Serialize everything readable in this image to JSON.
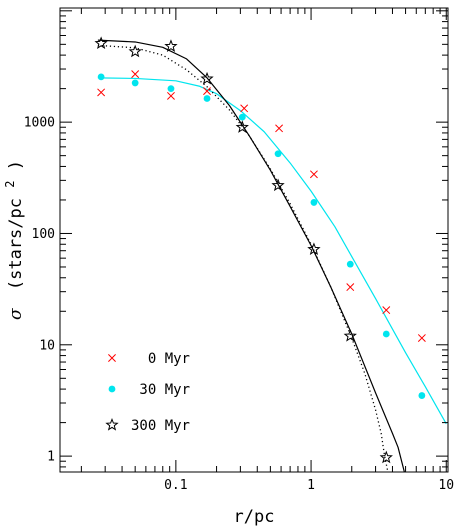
{
  "chart_data": {
    "type": "scatter",
    "xscale": "log",
    "yscale": "log",
    "xlim": [
      0.0139,
      10.3
    ],
    "ylim": [
      0.72,
      10600
    ],
    "xlabel": "r/pc",
    "ylabel_symbol": "σ",
    "ylabel_text": "(stars/pc",
    "ylabel_sup": "2",
    "ylabel_close": ")",
    "x_ticks": [
      {
        "value": 0.1,
        "label": "0.1"
      },
      {
        "value": 1,
        "label": "1"
      },
      {
        "value": 10,
        "label": "10"
      }
    ],
    "y_ticks": [
      {
        "value": 1,
        "label": "1"
      },
      {
        "value": 10,
        "label": "10"
      },
      {
        "value": 100,
        "label": "100"
      },
      {
        "value": 1000,
        "label": "1000"
      }
    ],
    "legend": {
      "placement": "bottom-left",
      "entries": [
        {
          "label": "0 Myr",
          "marker": "cross",
          "color": "#ff0000"
        },
        {
          "label": "30 Myr",
          "marker": "dot",
          "color": "#00e5ee"
        },
        {
          "label": "300 Myr",
          "marker": "star",
          "color": "#000000"
        }
      ]
    },
    "series": [
      {
        "name": "0 Myr",
        "marker": "cross",
        "color": "#ff0000",
        "points": [
          [
            0.028,
            1850
          ],
          [
            0.05,
            2700
          ],
          [
            0.092,
            1720
          ],
          [
            0.17,
            1900
          ],
          [
            0.32,
            1330
          ],
          [
            0.58,
            880
          ],
          [
            1.05,
            340
          ],
          [
            1.95,
            33
          ],
          [
            3.6,
            20.5
          ],
          [
            6.6,
            11.5
          ]
        ]
      },
      {
        "name": "30 Myr",
        "marker": "dot",
        "color": "#00e5ee",
        "points": [
          [
            0.028,
            2550
          ],
          [
            0.05,
            2250
          ],
          [
            0.092,
            2000
          ],
          [
            0.17,
            1630
          ],
          [
            0.31,
            1110
          ],
          [
            0.57,
            520
          ],
          [
            1.05,
            190
          ],
          [
            1.95,
            53
          ],
          [
            3.6,
            12.5
          ],
          [
            6.6,
            3.5
          ]
        ]
      },
      {
        "name": "300 Myr",
        "marker": "star",
        "color": "#000000",
        "points": [
          [
            0.028,
            5100
          ],
          [
            0.05,
            4300
          ],
          [
            0.092,
            4800
          ],
          [
            0.17,
            2450
          ],
          [
            0.31,
            900
          ],
          [
            0.57,
            270
          ],
          [
            1.05,
            72
          ],
          [
            1.95,
            12
          ],
          [
            3.6,
            0.97
          ]
        ]
      }
    ],
    "fits": [
      {
        "style": "solid",
        "color": "#00e5ee",
        "points": [
          [
            0.0265,
            2500
          ],
          [
            0.05,
            2470
          ],
          [
            0.1,
            2350
          ],
          [
            0.15,
            2100
          ],
          [
            0.2,
            1800
          ],
          [
            0.3,
            1270
          ],
          [
            0.45,
            820
          ],
          [
            0.7,
            430
          ],
          [
            1,
            240
          ],
          [
            1.5,
            115
          ],
          [
            2,
            62
          ],
          [
            3,
            26
          ],
          [
            5,
            8.5
          ],
          [
            7,
            4.2
          ],
          [
            10,
            1.95
          ]
        ]
      },
      {
        "style": "solid",
        "color": "#000000",
        "points": [
          [
            0.0265,
            5450
          ],
          [
            0.05,
            5250
          ],
          [
            0.08,
            4700
          ],
          [
            0.12,
            3700
          ],
          [
            0.17,
            2500
          ],
          [
            0.25,
            1400
          ],
          [
            0.35,
            750
          ],
          [
            0.5,
            370
          ],
          [
            0.7,
            175
          ],
          [
            1,
            78
          ],
          [
            1.4,
            33
          ],
          [
            2,
            12.5
          ],
          [
            3,
            3.7
          ],
          [
            4,
            1.6
          ],
          [
            4.4,
            1.2
          ],
          [
            4.9,
            0.72
          ]
        ]
      },
      {
        "style": "dotted",
        "color": "#000000",
        "points": [
          [
            0.0265,
            4900
          ],
          [
            0.05,
            4650
          ],
          [
            0.08,
            4000
          ],
          [
            0.12,
            2950
          ],
          [
            0.17,
            2080
          ],
          [
            0.25,
            1280
          ],
          [
            0.35,
            750
          ],
          [
            0.5,
            380
          ],
          [
            0.7,
            185
          ],
          [
            1,
            80
          ],
          [
            1.4,
            33
          ],
          [
            2,
            11.5
          ],
          [
            2.5,
            5.5
          ],
          [
            3,
            2.6
          ],
          [
            3.3,
            1.6
          ],
          [
            3.5,
            1.0
          ],
          [
            3.7,
            0.72
          ]
        ]
      }
    ]
  }
}
